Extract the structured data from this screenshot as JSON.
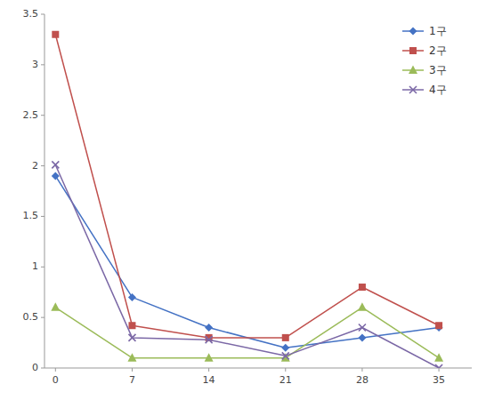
{
  "chart_data": {
    "type": "line",
    "x": [
      0,
      7,
      14,
      21,
      28,
      35
    ],
    "series": [
      {
        "name": "1구",
        "color": "#4472C4",
        "marker": "diamond",
        "values": [
          1.9,
          0.7,
          0.4,
          0.2,
          0.3,
          0.4
        ]
      },
      {
        "name": "2구",
        "color": "#C0504D",
        "marker": "square",
        "values": [
          3.3,
          0.42,
          0.3,
          0.3,
          0.8,
          0.42
        ]
      },
      {
        "name": "3구",
        "color": "#9BBB59",
        "marker": "triangle",
        "values": [
          0.6,
          0.1,
          0.1,
          0.1,
          0.6,
          0.1
        ]
      },
      {
        "name": "4구",
        "color": "#7B68A6",
        "marker": "x",
        "values": [
          2.01,
          0.3,
          0.28,
          0.12,
          0.4,
          0.0
        ]
      }
    ],
    "xlim": [
      -1,
      38
    ],
    "ylim": [
      0,
      3.5
    ],
    "xticks": [
      0,
      7,
      14,
      21,
      28,
      35
    ],
    "yticks": [
      0,
      0.5,
      1,
      1.5,
      2,
      2.5,
      3,
      3.5
    ],
    "grid": false,
    "legend": "upper right"
  }
}
